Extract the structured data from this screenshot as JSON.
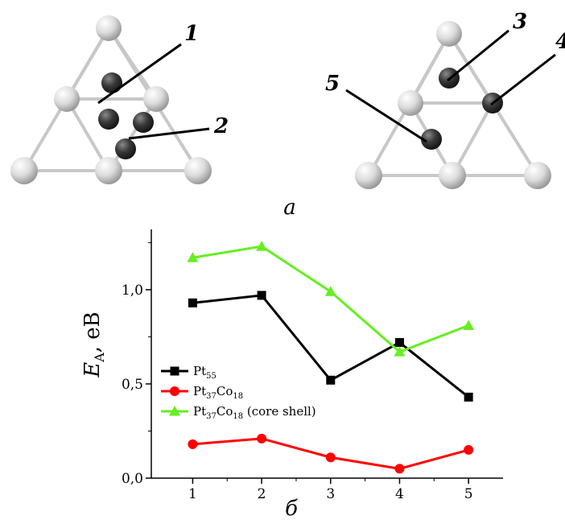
{
  "figure": {
    "panel_a_label": "a",
    "panel_b_label": "б",
    "callouts": [
      "1",
      "2",
      "3",
      "4",
      "5"
    ]
  },
  "chart_data": {
    "type": "line",
    "x": [
      1,
      2,
      3,
      4,
      5
    ],
    "xlabel": "",
    "ylabel_main": "E",
    "ylabel_sub": "A",
    "ylabel_unit": ", eB",
    "xlim": [
      0.4,
      5.5
    ],
    "ylim": [
      0,
      1.32
    ],
    "xticks": [
      1,
      2,
      3,
      4,
      5
    ],
    "yticks": [
      0,
      0.5,
      1.0
    ],
    "ytick_labels": [
      "0,0",
      "0,5",
      "1,0"
    ],
    "grid": false,
    "legend_position": "middle-left",
    "series": [
      {
        "name": "Pt",
        "sub": "55",
        "suffix": "",
        "color": "#000000",
        "marker": "square",
        "values": [
          0.93,
          0.97,
          0.52,
          0.72,
          0.43
        ]
      },
      {
        "name": "Pt",
        "sub": "37",
        "name2": "Co",
        "sub2": "18",
        "suffix": "",
        "color": "#ff0000",
        "marker": "circle",
        "values": [
          0.18,
          0.21,
          0.11,
          0.05,
          0.15
        ]
      },
      {
        "name": "Pt",
        "sub": "37",
        "name2": "Co",
        "sub2": "18",
        "suffix": " (core shell)",
        "color": "#66ee22",
        "marker": "triangle",
        "values": [
          1.17,
          1.23,
          0.99,
          0.67,
          0.81
        ]
      }
    ]
  }
}
